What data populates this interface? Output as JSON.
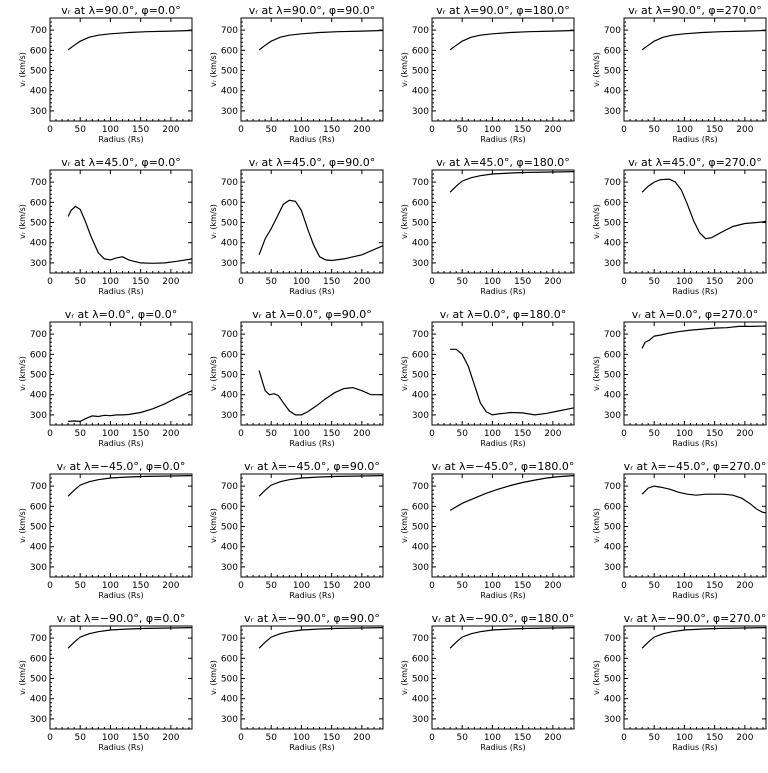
{
  "figure": {
    "xlabel": "Radius (Rs)",
    "ylabel": "vᵣ (km/s)",
    "xlim": [
      0,
      235
    ],
    "ylim": [
      250,
      760
    ],
    "xticks": [
      0,
      50,
      100,
      150,
      200
    ],
    "yticks": [
      300,
      400,
      500,
      600,
      700
    ]
  },
  "chart_data": [
    {
      "type": "line",
      "title": "vᵣ at λ=90.0°, φ=0.0°",
      "xlabel": "Radius (Rs)",
      "ylabel": "vᵣ (km/s)",
      "xlim": [
        0,
        235
      ],
      "ylim": [
        250,
        760
      ],
      "series": [
        {
          "x": [
            30,
            40,
            50,
            65,
            80,
            100,
            130,
            160,
            200,
            235
          ],
          "y": [
            602,
            625,
            645,
            665,
            675,
            682,
            688,
            692,
            695,
            698
          ]
        }
      ]
    },
    {
      "type": "line",
      "title": "vᵣ at λ=90.0°, φ=90.0°",
      "xlabel": "Radius (Rs)",
      "ylabel": "vᵣ (km/s)",
      "xlim": [
        0,
        235
      ],
      "ylim": [
        250,
        760
      ],
      "series": [
        {
          "x": [
            30,
            40,
            50,
            65,
            80,
            100,
            130,
            160,
            200,
            235
          ],
          "y": [
            602,
            625,
            645,
            665,
            675,
            682,
            688,
            692,
            695,
            698
          ]
        }
      ]
    },
    {
      "type": "line",
      "title": "vᵣ at λ=90.0°, φ=180.0°",
      "xlabel": "Radius (Rs)",
      "ylabel": "vᵣ (km/s)",
      "xlim": [
        0,
        235
      ],
      "ylim": [
        250,
        760
      ],
      "series": [
        {
          "x": [
            30,
            40,
            50,
            65,
            80,
            100,
            130,
            160,
            200,
            235
          ],
          "y": [
            602,
            625,
            645,
            665,
            675,
            682,
            688,
            692,
            695,
            698
          ]
        }
      ]
    },
    {
      "type": "line",
      "title": "vᵣ at λ=90.0°, φ=270.0°",
      "xlabel": "Radius (Rs)",
      "ylabel": "vᵣ (km/s)",
      "xlim": [
        0,
        235
      ],
      "ylim": [
        250,
        760
      ],
      "series": [
        {
          "x": [
            30,
            40,
            50,
            65,
            80,
            100,
            130,
            160,
            200,
            235
          ],
          "y": [
            602,
            625,
            645,
            665,
            675,
            682,
            688,
            692,
            695,
            698
          ]
        }
      ]
    },
    {
      "type": "line",
      "title": "vᵣ at λ=45.0°, φ=0.0°",
      "xlabel": "Radius (Rs)",
      "ylabel": "vᵣ (km/s)",
      "xlim": [
        0,
        235
      ],
      "ylim": [
        250,
        760
      ],
      "series": [
        {
          "x": [
            30,
            35,
            42,
            50,
            58,
            68,
            80,
            90,
            100,
            110,
            120,
            130,
            150,
            170,
            190,
            210,
            235
          ],
          "y": [
            530,
            560,
            580,
            565,
            510,
            430,
            350,
            320,
            315,
            325,
            330,
            315,
            300,
            298,
            300,
            308,
            320
          ]
        }
      ]
    },
    {
      "type": "line",
      "title": "vᵣ at λ=45.0°, φ=90.0°",
      "xlabel": "Radius (Rs)",
      "ylabel": "vᵣ (km/s)",
      "xlim": [
        0,
        235
      ],
      "ylim": [
        250,
        760
      ],
      "series": [
        {
          "x": [
            30,
            40,
            50,
            60,
            70,
            80,
            90,
            100,
            110,
            120,
            130,
            140,
            150,
            170,
            200,
            235
          ],
          "y": [
            340,
            420,
            470,
            530,
            590,
            610,
            605,
            560,
            470,
            390,
            330,
            315,
            312,
            320,
            340,
            385
          ]
        }
      ]
    },
    {
      "type": "line",
      "title": "vᵣ at λ=45.0°, φ=180.0°",
      "xlabel": "Radius (Rs)",
      "ylabel": "vᵣ (km/s)",
      "xlim": [
        0,
        235
      ],
      "ylim": [
        250,
        760
      ],
      "series": [
        {
          "x": [
            30,
            40,
            50,
            65,
            80,
            100,
            130,
            160,
            200,
            235
          ],
          "y": [
            650,
            680,
            705,
            722,
            732,
            740,
            745,
            748,
            750,
            752
          ]
        }
      ]
    },
    {
      "type": "line",
      "title": "vᵣ at λ=45.0°, φ=270.0°",
      "xlabel": "Radius (Rs)",
      "ylabel": "vᵣ (km/s)",
      "xlim": [
        0,
        235
      ],
      "ylim": [
        250,
        760
      ],
      "series": [
        {
          "x": [
            30,
            40,
            50,
            60,
            75,
            85,
            95,
            105,
            115,
            125,
            135,
            145,
            160,
            180,
            200,
            220,
            235
          ],
          "y": [
            650,
            680,
            700,
            712,
            715,
            700,
            660,
            590,
            510,
            450,
            420,
            425,
            450,
            480,
            495,
            500,
            505
          ]
        }
      ]
    },
    {
      "type": "line",
      "title": "vᵣ at λ=0.0°, φ=0.0°",
      "xlabel": "Radius (Rs)",
      "ylabel": "vᵣ (km/s)",
      "xlim": [
        0,
        235
      ],
      "ylim": [
        250,
        760
      ],
      "series": [
        {
          "x": [
            30,
            40,
            50,
            60,
            70,
            80,
            90,
            100,
            110,
            120,
            130,
            150,
            170,
            190,
            210,
            235
          ],
          "y": [
            268,
            270,
            268,
            283,
            295,
            292,
            298,
            296,
            300,
            300,
            302,
            312,
            330,
            355,
            385,
            420
          ]
        }
      ]
    },
    {
      "type": "line",
      "title": "vᵣ at λ=0.0°, φ=90.0°",
      "xlabel": "Radius (Rs)",
      "ylabel": "vᵣ (km/s)",
      "xlim": [
        0,
        235
      ],
      "ylim": [
        250,
        760
      ],
      "series": [
        {
          "x": [
            30,
            35,
            40,
            47,
            55,
            62,
            70,
            80,
            90,
            100,
            110,
            125,
            140,
            155,
            170,
            185,
            200,
            215,
            235
          ],
          "y": [
            520,
            470,
            420,
            400,
            405,
            395,
            360,
            320,
            300,
            300,
            315,
            345,
            380,
            410,
            430,
            435,
            420,
            400,
            400
          ]
        }
      ]
    },
    {
      "type": "line",
      "title": "vᵣ at λ=0.0°, φ=180.0°",
      "xlabel": "Radius (Rs)",
      "ylabel": "vᵣ (km/s)",
      "xlim": [
        0,
        235
      ],
      "ylim": [
        250,
        760
      ],
      "series": [
        {
          "x": [
            30,
            40,
            50,
            60,
            70,
            80,
            90,
            100,
            110,
            120,
            130,
            150,
            170,
            190,
            210,
            235
          ],
          "y": [
            625,
            625,
            600,
            540,
            450,
            360,
            315,
            300,
            305,
            308,
            312,
            310,
            300,
            308,
            320,
            335
          ]
        }
      ]
    },
    {
      "type": "line",
      "title": "vᵣ at λ=0.0°, φ=270.0°",
      "xlabel": "Radius (Rs)",
      "ylabel": "vᵣ (km/s)",
      "xlim": [
        0,
        235
      ],
      "ylim": [
        250,
        760
      ],
      "series": [
        {
          "x": [
            30,
            35,
            42,
            50,
            60,
            75,
            90,
            110,
            130,
            150,
            170,
            190,
            210,
            235
          ],
          "y": [
            630,
            660,
            670,
            690,
            695,
            705,
            712,
            720,
            725,
            730,
            732,
            738,
            738,
            740
          ]
        }
      ]
    },
    {
      "type": "line",
      "title": "vᵣ at λ=−45.0°, φ=0.0°",
      "xlabel": "Radius (Rs)",
      "ylabel": "vᵣ (km/s)",
      "xlim": [
        0,
        235
      ],
      "ylim": [
        250,
        760
      ],
      "series": [
        {
          "x": [
            30,
            40,
            50,
            65,
            80,
            100,
            130,
            160,
            200,
            235
          ],
          "y": [
            650,
            680,
            705,
            722,
            732,
            740,
            745,
            748,
            750,
            752
          ]
        }
      ]
    },
    {
      "type": "line",
      "title": "vᵣ at λ=−45.0°, φ=90.0°",
      "xlabel": "Radius (Rs)",
      "ylabel": "vᵣ (km/s)",
      "xlim": [
        0,
        235
      ],
      "ylim": [
        250,
        760
      ],
      "series": [
        {
          "x": [
            30,
            40,
            50,
            65,
            80,
            100,
            130,
            160,
            200,
            235
          ],
          "y": [
            650,
            680,
            705,
            722,
            732,
            740,
            745,
            748,
            750,
            752
          ]
        }
      ]
    },
    {
      "type": "line",
      "title": "vᵣ at λ=−45.0°, φ=180.0°",
      "xlabel": "Radius (Rs)",
      "ylabel": "vᵣ (km/s)",
      "xlim": [
        0,
        235
      ],
      "ylim": [
        250,
        760
      ],
      "series": [
        {
          "x": [
            30,
            50,
            70,
            90,
            110,
            130,
            150,
            170,
            190,
            210,
            235
          ],
          "y": [
            580,
            615,
            640,
            665,
            685,
            703,
            718,
            730,
            740,
            747,
            752
          ]
        }
      ]
    },
    {
      "type": "line",
      "title": "vᵣ at λ=−45.0°, φ=270.0°",
      "xlabel": "Radius (Rs)",
      "ylabel": "vᵣ (km/s)",
      "xlim": [
        0,
        235
      ],
      "ylim": [
        250,
        760
      ],
      "series": [
        {
          "x": [
            30,
            40,
            50,
            60,
            75,
            90,
            105,
            120,
            135,
            150,
            165,
            180,
            195,
            210,
            220,
            230,
            235
          ],
          "y": [
            660,
            690,
            700,
            695,
            685,
            670,
            660,
            655,
            660,
            660,
            660,
            655,
            640,
            610,
            585,
            570,
            568
          ]
        }
      ]
    },
    {
      "type": "line",
      "title": "vᵣ at λ=−90.0°, φ=0.0°",
      "xlabel": "Radius (Rs)",
      "ylabel": "vᵣ (km/s)",
      "xlim": [
        0,
        235
      ],
      "ylim": [
        250,
        760
      ],
      "series": [
        {
          "x": [
            30,
            40,
            50,
            65,
            80,
            100,
            130,
            160,
            200,
            235
          ],
          "y": [
            650,
            680,
            705,
            722,
            732,
            740,
            745,
            748,
            750,
            752
          ]
        }
      ]
    },
    {
      "type": "line",
      "title": "vᵣ at λ=−90.0°, φ=90.0°",
      "xlabel": "Radius (Rs)",
      "ylabel": "vᵣ (km/s)",
      "xlim": [
        0,
        235
      ],
      "ylim": [
        250,
        760
      ],
      "series": [
        {
          "x": [
            30,
            40,
            50,
            65,
            80,
            100,
            130,
            160,
            200,
            235
          ],
          "y": [
            650,
            680,
            705,
            722,
            732,
            740,
            745,
            748,
            750,
            752
          ]
        }
      ]
    },
    {
      "type": "line",
      "title": "vᵣ at λ=−90.0°, φ=180.0°",
      "xlabel": "Radius (Rs)",
      "ylabel": "vᵣ (km/s)",
      "xlim": [
        0,
        235
      ],
      "ylim": [
        250,
        760
      ],
      "series": [
        {
          "x": [
            30,
            40,
            50,
            65,
            80,
            100,
            130,
            160,
            200,
            235
          ],
          "y": [
            650,
            680,
            705,
            722,
            732,
            740,
            745,
            748,
            750,
            752
          ]
        }
      ]
    },
    {
      "type": "line",
      "title": "vᵣ at λ=−90.0°, φ=270.0°",
      "xlabel": "Radius (Rs)",
      "ylabel": "vᵣ (km/s)",
      "xlim": [
        0,
        235
      ],
      "ylim": [
        250,
        760
      ],
      "series": [
        {
          "x": [
            30,
            40,
            50,
            65,
            80,
            100,
            130,
            160,
            200,
            235
          ],
          "y": [
            650,
            680,
            705,
            722,
            732,
            740,
            745,
            748,
            750,
            752
          ]
        }
      ]
    }
  ]
}
